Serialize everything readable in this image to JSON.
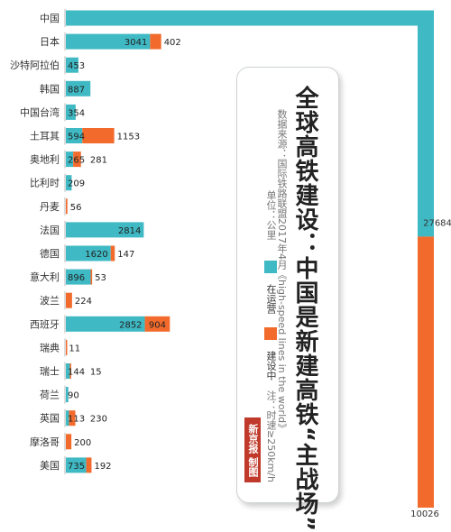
{
  "chart_data": {
    "type": "bar",
    "orientation": "horizontal",
    "stacked": true,
    "title": "全球高铁建设：中国是新建高铁“主战场”",
    "source": "数据来源：国际铁路联盟2017年4月《high-speed lines in the world》",
    "unit": "单位：公里",
    "note": "注：时速≥250km/h",
    "categories": [
      "中国",
      "日本",
      "沙特阿拉伯",
      "韩国",
      "中国台湾",
      "土耳其",
      "奥地利",
      "比利时",
      "丹麦",
      "法国",
      "德国",
      "意大利",
      "波兰",
      "西班牙",
      "瑞典",
      "瑞士",
      "荷兰",
      "英国",
      "摩洛哥",
      "美国"
    ],
    "series": [
      {
        "name": "在运营",
        "color": "#3fb9c4",
        "values": [
          27684,
          3041,
          453,
          887,
          354,
          594,
          265,
          209,
          0,
          2814,
          1620,
          896,
          0,
          2852,
          0,
          144,
          90,
          113,
          0,
          735
        ]
      },
      {
        "name": "建设中",
        "color": "#f26b2d",
        "values": [
          10026,
          402,
          0,
          0,
          0,
          1153,
          281,
          0,
          56,
          0,
          147,
          53,
          224,
          904,
          11,
          15,
          0,
          230,
          200,
          192
        ]
      }
    ],
    "labels_operating": [
      "",
      "3041",
      "453",
      "887",
      "354",
      "594",
      "265",
      "209",
      "",
      "2814",
      "1620",
      "896",
      "",
      "2852",
      "",
      "144",
      "90",
      "113",
      "",
      "735"
    ],
    "labels_construction": [
      "",
      "402",
      "",
      "",
      "",
      "1153",
      "281",
      "",
      "56",
      "",
      "147",
      "53",
      "224",
      "904",
      "11",
      "15",
      "",
      "230",
      "200",
      "192"
    ],
    "china_operating_label": "27684",
    "china_construction_label": "10026",
    "stamp_text": "新京报 制图",
    "grid": false,
    "legend_position": "inside card"
  }
}
